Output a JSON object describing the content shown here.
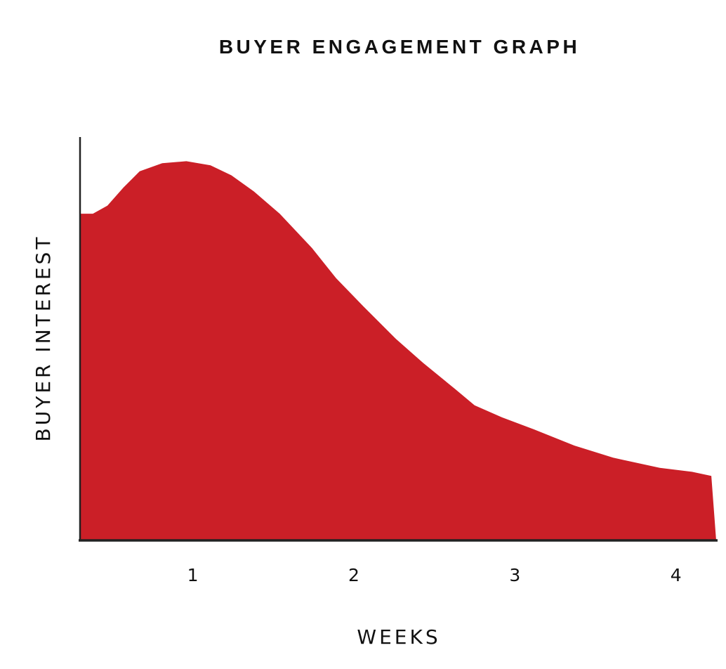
{
  "chart_data": {
    "type": "area",
    "title": "BUYER ENGAGEMENT GRAPH",
    "xlabel": "WEEKS",
    "ylabel": "BUYER INTEREST",
    "x_ticks": [
      {
        "value": 1,
        "label": "1"
      },
      {
        "value": 2,
        "label": "2"
      },
      {
        "value": 3,
        "label": "3"
      },
      {
        "value": 4,
        "label": "4"
      }
    ],
    "xlim": [
      0.3,
      4.25
    ],
    "ylim": [
      0,
      100
    ],
    "y_ticks_shown": false,
    "grid": false,
    "legend": "none",
    "fill_color": "#cb1f27",
    "axis_color": "#222222",
    "series": [
      {
        "x": [
          0.3,
          0.38,
          0.47,
          0.57,
          0.67,
          0.81,
          0.96,
          1.11,
          1.24,
          1.38,
          1.54,
          1.74,
          1.89,
          2.06,
          2.26,
          2.43,
          2.63,
          2.75,
          2.92,
          3.12,
          3.37,
          3.61,
          3.9,
          4.1,
          4.22,
          4.25
        ],
        "y": [
          81.0,
          81.0,
          83.0,
          87.5,
          91.5,
          93.5,
          94.0,
          93.0,
          90.5,
          86.5,
          81.0,
          72.5,
          65.0,
          58.0,
          50.0,
          44.0,
          37.5,
          33.5,
          30.5,
          27.5,
          23.5,
          20.5,
          18.0,
          17.0,
          16.0,
          0.0
        ]
      }
    ]
  }
}
